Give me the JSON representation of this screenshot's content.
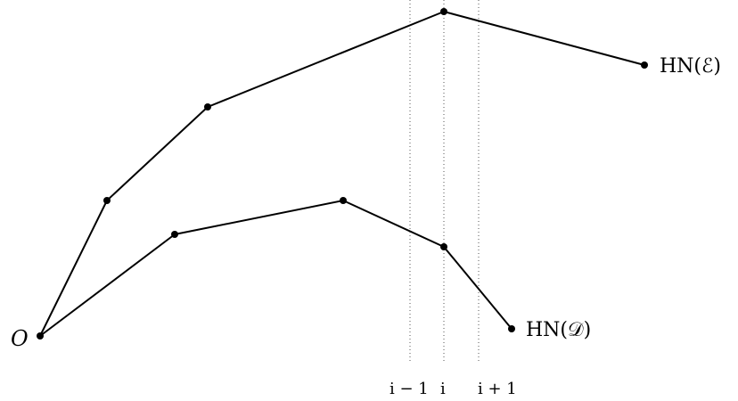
{
  "origin": {
    "label": "O"
  },
  "polygons": [
    {
      "id": "E",
      "label": "HN(ℰ)",
      "vertex_count": 5
    },
    {
      "id": "D",
      "label": "HN(𝒟)",
      "vertex_count": 5
    }
  ],
  "ticks": [
    {
      "label": "i − 1"
    },
    {
      "label": "i"
    },
    {
      "label": "i + 1"
    }
  ]
}
